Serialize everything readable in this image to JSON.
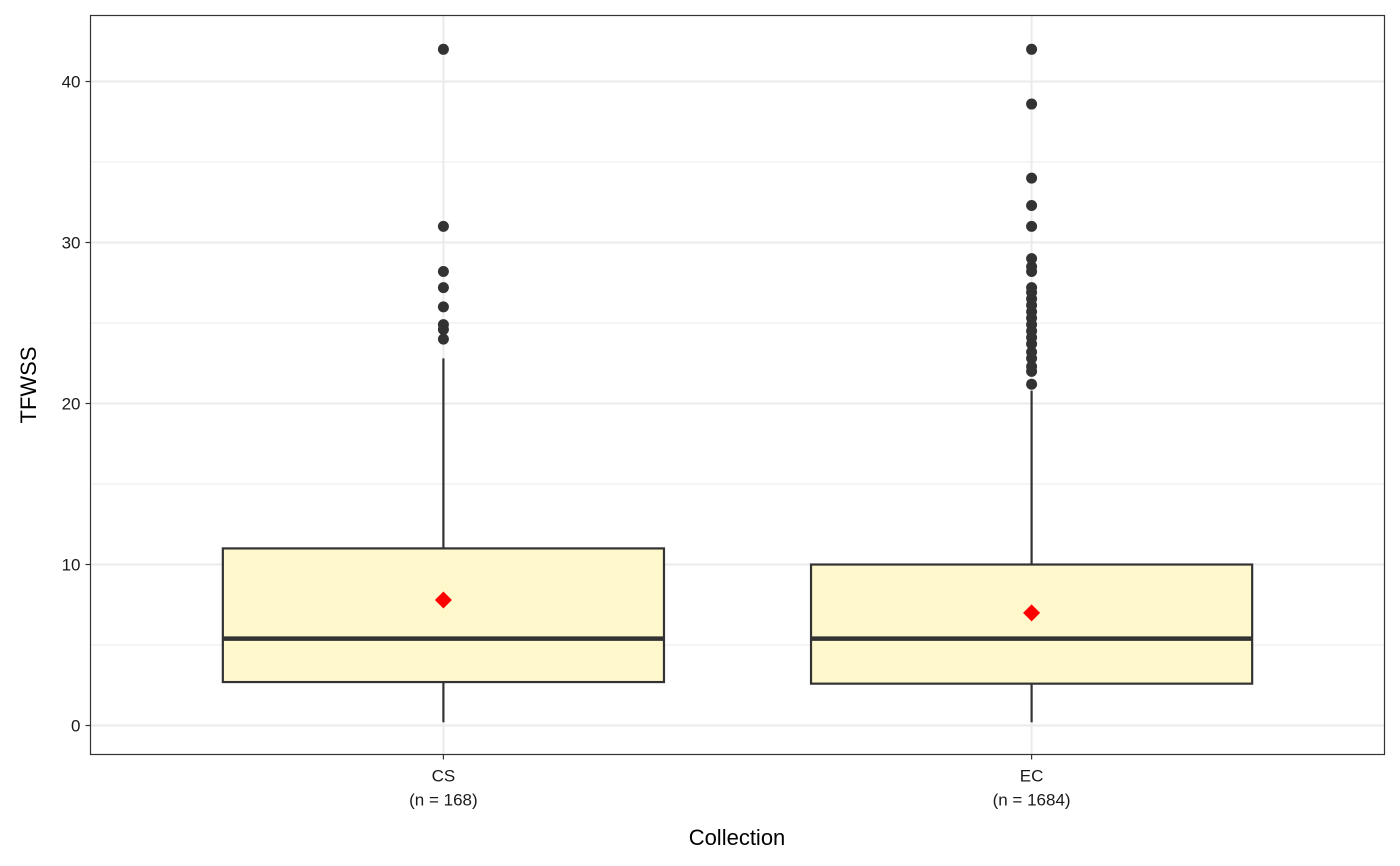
{
  "chart_data": {
    "type": "box",
    "xlabel": "Collection",
    "ylabel": "TFWSS",
    "ylim": [
      -1.8,
      44.1
    ],
    "yticks": [
      0,
      10,
      20,
      30,
      40
    ],
    "grid": true,
    "colors": {
      "box_fill": "#FFF8CC",
      "box_stroke": "#333333",
      "outlier": "#333333",
      "mean_marker": "#FF0000",
      "panel_border": "#333333",
      "grid": "#EBEBEB"
    },
    "groups": [
      {
        "category": "CS",
        "count_label": "(n = 168)",
        "whisker_low": 0.2,
        "q1": 2.7,
        "median": 5.4,
        "q3": 11.0,
        "whisker_high": 22.8,
        "mean": 7.8,
        "outliers": [
          24.0,
          24.6,
          24.9,
          26.0,
          27.2,
          28.2,
          31.0,
          42.0
        ]
      },
      {
        "category": "EC",
        "count_label": "(n = 1684)",
        "whisker_low": 0.2,
        "q1": 2.6,
        "median": 5.4,
        "q3": 10.0,
        "whisker_high": 20.8,
        "mean": 7.0,
        "outliers": [
          21.2,
          22.0,
          22.3,
          22.8,
          23.2,
          23.7,
          24.1,
          24.5,
          24.9,
          25.3,
          25.7,
          26.1,
          26.5,
          26.9,
          27.2,
          28.2,
          28.5,
          29.0,
          31.0,
          32.3,
          34.0,
          38.6,
          42.0
        ]
      }
    ]
  }
}
